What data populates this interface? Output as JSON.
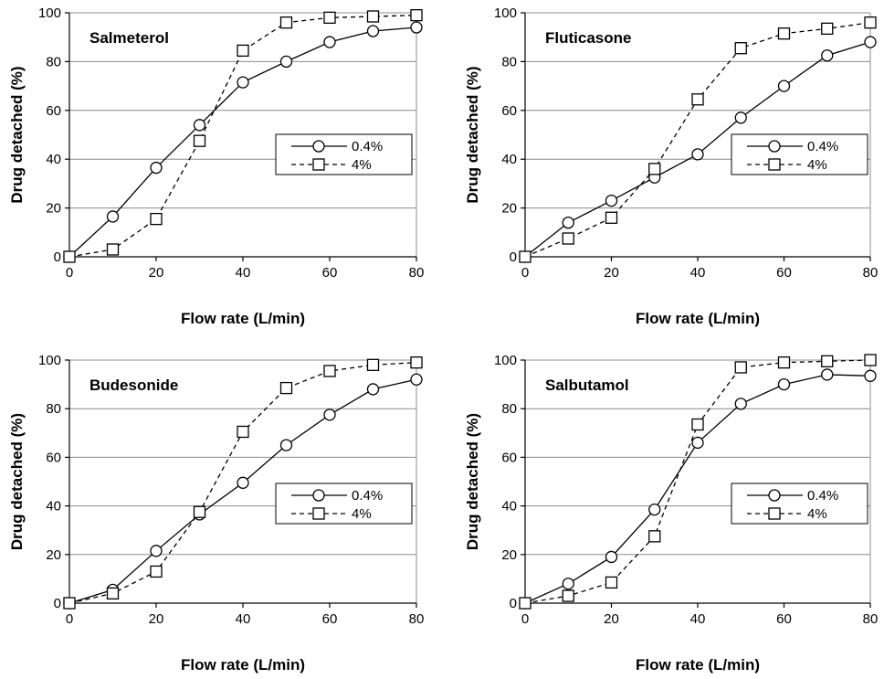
{
  "chart_data": [
    {
      "type": "line",
      "title": "Salmeterol",
      "xlabel": "Flow rate (L/min)",
      "ylabel": "Drug detached (%)",
      "xlim": [
        0,
        80
      ],
      "ylim": [
        0,
        100
      ],
      "xticks": [
        "0",
        "20",
        "40",
        "60",
        "80"
      ],
      "yticks": [
        "0",
        "20",
        "40",
        "60",
        "80",
        "100"
      ],
      "x": [
        0,
        10,
        20,
        30,
        40,
        50,
        60,
        70,
        80
      ],
      "grid": "horizontal",
      "legend_position": "middle-right",
      "series": [
        {
          "name": "0.4%",
          "marker": "circle",
          "dash": "solid",
          "values": [
            0,
            16.5,
            36.5,
            54,
            71.5,
            80,
            88,
            92.5,
            94
          ]
        },
        {
          "name": "4%",
          "marker": "square",
          "dash": "dashed",
          "values": [
            0,
            3,
            15.5,
            47.5,
            84.5,
            96,
            98,
            98.5,
            99
          ]
        }
      ]
    },
    {
      "type": "line",
      "title": "Fluticasone",
      "xlabel": "Flow rate (L/min)",
      "ylabel": "Drug detached (%)",
      "xlim": [
        0,
        80
      ],
      "ylim": [
        0,
        100
      ],
      "xticks": [
        "0",
        "20",
        "40",
        "60",
        "80"
      ],
      "yticks": [
        "0",
        "20",
        "40",
        "60",
        "80",
        "100"
      ],
      "x": [
        0,
        10,
        20,
        30,
        40,
        50,
        60,
        70,
        80
      ],
      "grid": "horizontal",
      "legend_position": "middle-right",
      "series": [
        {
          "name": "0.4%",
          "marker": "circle",
          "dash": "solid",
          "values": [
            0,
            14,
            23,
            32.5,
            42,
            57,
            70,
            82.5,
            88
          ]
        },
        {
          "name": "4%",
          "marker": "square",
          "dash": "dashed",
          "values": [
            0,
            7.5,
            16,
            36,
            64.5,
            85.5,
            91.5,
            93.5,
            96
          ]
        }
      ]
    },
    {
      "type": "line",
      "title": "Budesonide",
      "xlabel": "Flow rate (L/min)",
      "ylabel": "Drug detached (%)",
      "xlim": [
        0,
        80
      ],
      "ylim": [
        0,
        100
      ],
      "xticks": [
        "0",
        "20",
        "40",
        "60",
        "80"
      ],
      "yticks": [
        "0",
        "20",
        "40",
        "60",
        "80",
        "100"
      ],
      "x": [
        0,
        10,
        20,
        30,
        40,
        50,
        60,
        70,
        80
      ],
      "grid": "horizontal",
      "legend_position": "middle-right",
      "series": [
        {
          "name": "0.4%",
          "marker": "circle",
          "dash": "solid",
          "values": [
            0,
            5.5,
            21.5,
            36.5,
            49.5,
            65,
            77.5,
            88,
            92
          ]
        },
        {
          "name": "4%",
          "marker": "square",
          "dash": "dashed",
          "values": [
            0,
            4,
            13,
            37.5,
            70.5,
            88.5,
            95.5,
            98,
            99
          ]
        }
      ]
    },
    {
      "type": "line",
      "title": "Salbutamol",
      "xlabel": "Flow rate (L/min)",
      "ylabel": "Drug detached (%)",
      "xlim": [
        0,
        80
      ],
      "ylim": [
        0,
        100
      ],
      "xticks": [
        "0",
        "20",
        "40",
        "60",
        "80"
      ],
      "yticks": [
        "0",
        "20",
        "40",
        "60",
        "80",
        "100"
      ],
      "x": [
        0,
        10,
        20,
        30,
        40,
        50,
        60,
        70,
        80
      ],
      "grid": "horizontal",
      "legend_position": "middle-right",
      "series": [
        {
          "name": "0.4%",
          "marker": "circle",
          "dash": "solid",
          "values": [
            0,
            8,
            19,
            38.5,
            66,
            82,
            90,
            94,
            93.5
          ]
        },
        {
          "name": "4%",
          "marker": "square",
          "dash": "dashed",
          "values": [
            0,
            3,
            8.5,
            27.5,
            73.5,
            97,
            99,
            99.5,
            100
          ]
        }
      ]
    }
  ]
}
